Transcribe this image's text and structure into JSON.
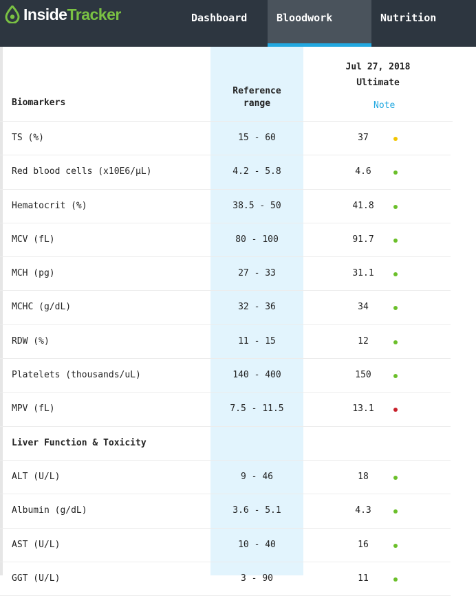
{
  "nav": {
    "logo_inside": "Inside",
    "logo_tracker": "Tracker",
    "items": [
      {
        "label": "Dashboard"
      },
      {
        "label": "Bloodwork"
      },
      {
        "label": "Nutrition"
      }
    ],
    "active": "Bloodwork"
  },
  "colors": {
    "topbar": "#2d3640",
    "active_tab": "#4a535c",
    "accent": "#22a8e0",
    "brand_green": "#7ac143",
    "reference_band": "#e2f4fd",
    "status_optimal": "#6bbf2a",
    "status_borderline": "#f2c500",
    "status_out": "#c8202a"
  },
  "table": {
    "headers": {
      "biomarkers": "Biomarkers",
      "reference_line1": "Reference",
      "reference_line2": "range",
      "test_date": "Jul 27, 2018",
      "test_plan": "Ultimate",
      "note": "Note"
    },
    "rows": [
      {
        "name": "TS (%)",
        "range": "15 - 60",
        "value": "37",
        "status": "borderline"
      },
      {
        "name": "Red blood cells (x10E6/µL)",
        "range": "4.2 - 5.8",
        "value": "4.6",
        "status": "optimal"
      },
      {
        "name": "Hematocrit (%)",
        "range": "38.5 - 50",
        "value": "41.8",
        "status": "optimal"
      },
      {
        "name": "MCV (fL)",
        "range": "80 - 100",
        "value": "91.7",
        "status": "optimal"
      },
      {
        "name": "MCH (pg)",
        "range": "27 - 33",
        "value": "31.1",
        "status": "optimal"
      },
      {
        "name": "MCHC (g/dL)",
        "range": "32 - 36",
        "value": "34",
        "status": "optimal"
      },
      {
        "name": "RDW (%)",
        "range": "11 - 15",
        "value": "12",
        "status": "optimal"
      },
      {
        "name": "Platelets (thousands/uL)",
        "range": "140 - 400",
        "value": "150",
        "status": "optimal"
      },
      {
        "name": "MPV (fL)",
        "range": "7.5 - 11.5",
        "value": "13.1",
        "status": "out"
      },
      {
        "section": "Liver Function & Toxicity"
      },
      {
        "name": "ALT (U/L)",
        "range": "9 - 46",
        "value": "18",
        "status": "optimal"
      },
      {
        "name": "Albumin (g/dL)",
        "range": "3.6 - 5.1",
        "value": "4.3",
        "status": "optimal"
      },
      {
        "name": "AST (U/L)",
        "range": "10 - 40",
        "value": "16",
        "status": "optimal"
      },
      {
        "name": "GGT (U/L)",
        "range": "3 - 90",
        "value": "11",
        "status": "optimal"
      }
    ]
  }
}
